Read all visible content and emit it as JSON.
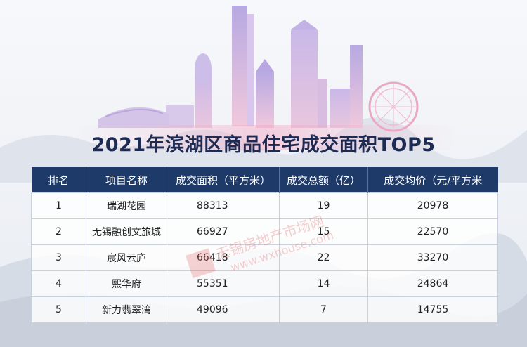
{
  "title": "2021年滨湖区商品住宅成交面积TOP5",
  "watermark": {
    "text": "无锡房地产市场网",
    "url": "www.wxhouse.com"
  },
  "chart_data": {
    "type": "table",
    "title": "2021年滨湖区商品住宅成交面积TOP5",
    "columns": [
      "排名",
      "项目名称",
      "成交面积（平方米）",
      "成交总额（亿）",
      "成交均价（元/平方米"
    ],
    "rows": [
      [
        "1",
        "瑞湖花园",
        "88313",
        "19",
        "20978"
      ],
      [
        "2",
        "无锡融创文旅城",
        "66927",
        "15",
        "22570"
      ],
      [
        "3",
        "宸风云庐",
        "66418",
        "22",
        "33270"
      ],
      [
        "4",
        "熙华府",
        "55351",
        "14",
        "24864"
      ],
      [
        "5",
        "新力翡翠湾",
        "49096",
        "7",
        "14755"
      ]
    ]
  }
}
